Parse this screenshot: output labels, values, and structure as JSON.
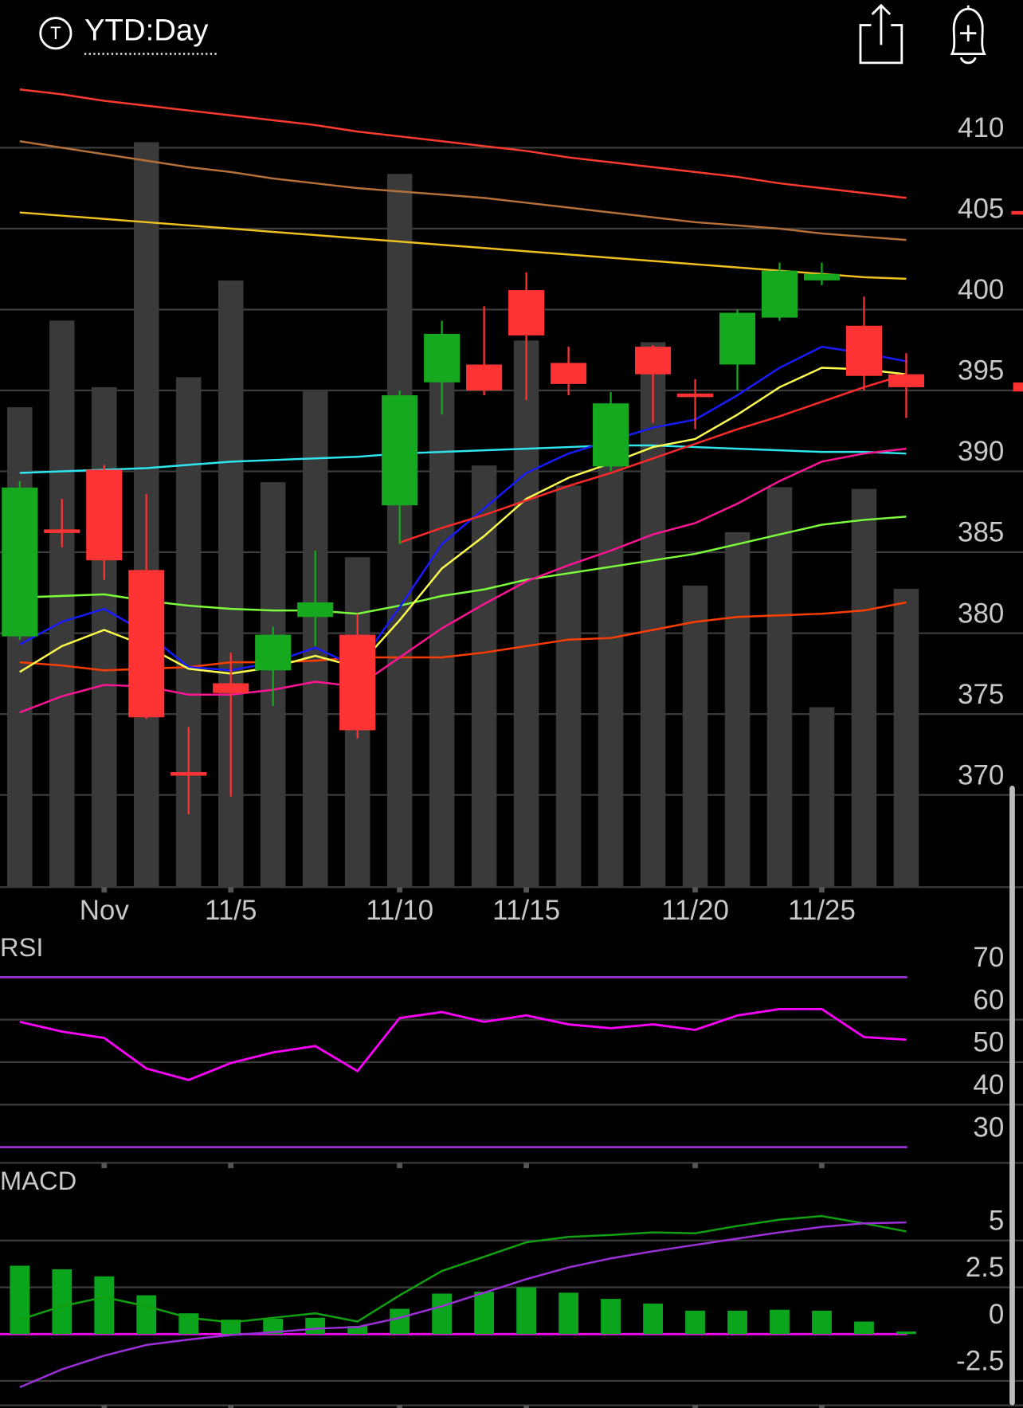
{
  "chart_data": [
    {
      "type": "candlestick",
      "title": "YTD:Day",
      "badge": "T",
      "categories": [
        null,
        null,
        "Nov",
        null,
        null,
        "11/5",
        null,
        null,
        null,
        "11/10",
        null,
        null,
        "11/15",
        null,
        null,
        null,
        "11/20",
        null,
        null,
        "11/25",
        null,
        null
      ],
      "open": [
        379.8,
        386.3,
        390.1,
        383.9,
        371.3,
        376.9,
        377.7,
        381.0,
        379.9,
        387.9,
        395.5,
        396.6,
        401.2,
        396.7,
        390.3,
        397.7,
        394.7,
        396.6,
        399.5,
        401.8,
        399.0,
        396.0
      ],
      "high": [
        389.4,
        388.3,
        390.4,
        388.6,
        374.2,
        378.8,
        380.4,
        385.1,
        381.2,
        395.0,
        399.3,
        400.2,
        402.3,
        397.7,
        394.9,
        397.8,
        395.7,
        400.0,
        402.9,
        402.9,
        400.8,
        397.3
      ],
      "low": [
        379.6,
        385.3,
        383.3,
        374.7,
        368.8,
        369.9,
        375.5,
        379.2,
        373.5,
        385.5,
        393.5,
        394.7,
        394.4,
        394.7,
        390.0,
        393.0,
        392.6,
        395.0,
        399.3,
        401.5,
        395.0,
        393.3
      ],
      "close": [
        389.0,
        386.3,
        384.5,
        374.8,
        371.1,
        376.3,
        379.9,
        381.9,
        374.0,
        394.7,
        398.5,
        395.0,
        398.4,
        395.4,
        394.2,
        396.0,
        394.7,
        399.8,
        402.4,
        402.2,
        395.9,
        395.2
      ],
      "up_color": "#16a81e",
      "down_color": "#ff3333",
      "volume": {
        "color": "#3a3a3a",
        "ylim": [
          0,
          500
        ],
        "values": [
          288,
          340,
          300,
          447,
          306,
          364,
          243,
          298,
          198,
          428,
          330,
          253,
          328,
          241,
          262,
          327,
          181,
          213,
          240,
          108,
          239,
          179
        ]
      },
      "series": [
        {
          "color": "#ff3b30",
          "values": [
            413.6,
            413.3,
            412.9,
            412.6,
            412.3,
            412.0,
            411.7,
            411.4,
            411.0,
            410.7,
            410.4,
            410.1,
            409.8,
            409.4,
            409.1,
            408.8,
            408.5,
            408.2,
            407.8,
            407.5,
            407.2,
            406.9
          ]
        },
        {
          "color": "#b5703a",
          "values": [
            410.4,
            410.0,
            409.6,
            409.2,
            408.8,
            408.5,
            408.1,
            407.8,
            407.5,
            407.3,
            407.1,
            406.9,
            406.6,
            406.3,
            406.0,
            405.7,
            405.4,
            405.2,
            405.0,
            404.7,
            404.5,
            404.3
          ]
        },
        {
          "color": "#f0c020",
          "values": [
            406.0,
            405.8,
            405.6,
            405.4,
            405.2,
            405.0,
            404.8,
            404.6,
            404.4,
            404.2,
            404.0,
            403.8,
            403.6,
            403.4,
            403.2,
            403.0,
            402.8,
            402.6,
            402.4,
            402.2,
            402.0,
            401.9
          ]
        },
        {
          "color": "#2ee6f0",
          "values": [
            389.9,
            390.0,
            390.1,
            390.2,
            390.4,
            390.6,
            390.7,
            390.8,
            390.9,
            391.1,
            391.2,
            391.3,
            391.4,
            391.5,
            391.6,
            391.6,
            391.5,
            391.4,
            391.3,
            391.2,
            391.2,
            391.1
          ]
        },
        {
          "color": "#7cfc3a",
          "values": [
            382.2,
            382.3,
            382.4,
            382.0,
            381.7,
            381.5,
            381.4,
            381.4,
            381.2,
            381.7,
            382.3,
            382.7,
            383.3,
            383.7,
            384.1,
            384.5,
            384.9,
            385.5,
            386.1,
            386.7,
            387.0,
            387.2
          ]
        },
        {
          "color": "#ff3d00",
          "values": [
            378.2,
            378.0,
            377.7,
            377.8,
            377.9,
            378.2,
            378.2,
            378.3,
            378.5,
            378.5,
            378.5,
            378.8,
            379.2,
            379.6,
            379.7,
            380.2,
            380.7,
            381.0,
            381.1,
            381.2,
            381.4,
            381.9
          ]
        },
        {
          "color": "#ff1493",
          "values": [
            375.1,
            376.1,
            376.8,
            376.7,
            376.2,
            376.2,
            376.5,
            377.0,
            376.7,
            378.5,
            380.3,
            381.8,
            383.2,
            384.2,
            385.1,
            386.1,
            386.8,
            388.0,
            389.4,
            390.6,
            391.1,
            391.4
          ]
        },
        {
          "color": "#1a1aff",
          "values": [
            379.3,
            380.7,
            381.5,
            380.0,
            377.9,
            377.7,
            378.2,
            379.1,
            377.9,
            381.6,
            385.5,
            387.7,
            389.9,
            391.1,
            391.9,
            392.7,
            393.2,
            394.7,
            396.4,
            397.7,
            397.3,
            396.8
          ]
        },
        {
          "color": "#ffff4d",
          "values": [
            377.6,
            379.2,
            380.2,
            379.2,
            377.8,
            377.5,
            377.9,
            378.6,
            377.9,
            380.8,
            384.0,
            386.0,
            388.3,
            389.6,
            390.5,
            391.5,
            392.0,
            393.5,
            395.2,
            396.4,
            396.3,
            396.0
          ]
        },
        {
          "color": "#ff2a2a",
          "values": [
            null,
            null,
            null,
            null,
            null,
            null,
            null,
            null,
            null,
            385.6,
            386.5,
            387.3,
            388.2,
            389.1,
            389.9,
            390.8,
            391.7,
            392.6,
            393.4,
            394.3,
            395.2,
            396.0
          ]
        }
      ],
      "ylim": [
        364.3,
        415.8
      ],
      "yticks": [
        410,
        405,
        400,
        395,
        390,
        385,
        380,
        375,
        370
      ],
      "grid": true
    },
    {
      "type": "line",
      "title": "RSI",
      "series": [
        {
          "color": "#ff00ff",
          "values": [
            59.5,
            57.2,
            55.7,
            48.5,
            45.8,
            49.8,
            52.3,
            53.8,
            47.9,
            60.4,
            61.8,
            59.5,
            61.0,
            58.9,
            58.0,
            58.9,
            57.6,
            61.0,
            62.5,
            62.5,
            55.9,
            55.3
          ]
        }
      ],
      "ylim": [
        26.3,
        80.2
      ],
      "yticks": [
        70,
        60,
        50,
        40,
        30
      ],
      "band_color": "#9b30d9",
      "grid": true
    },
    {
      "type": "bar",
      "title": "MACD",
      "color": "#0aa51c",
      "values": [
        3.65,
        3.46,
        3.08,
        2.07,
        1.11,
        0.77,
        0.82,
        0.87,
        0.43,
        1.35,
        2.16,
        2.26,
        2.5,
        2.21,
        1.88,
        1.63,
        1.25,
        1.25,
        1.3,
        1.25,
        0.67,
        0.14
      ],
      "series": [
        {
          "color": "#10a010",
          "values": [
            0.77,
            1.49,
            1.97,
            1.49,
            0.87,
            0.63,
            0.87,
            1.11,
            0.67,
            2.07,
            3.37,
            4.13,
            4.9,
            5.19,
            5.29,
            5.43,
            5.38,
            5.77,
            6.11,
            6.3,
            5.91,
            5.48
          ]
        },
        {
          "color": "#9b30d9",
          "values": [
            -2.84,
            -1.88,
            -1.15,
            -0.58,
            -0.29,
            -0.05,
            0.1,
            0.29,
            0.38,
            0.87,
            1.49,
            2.21,
            2.93,
            3.56,
            4.04,
            4.42,
            4.76,
            5.1,
            5.43,
            5.72,
            5.91,
            5.96
          ]
        }
      ],
      "ylim": [
        -3.8,
        8.9
      ],
      "yticks": [
        5,
        2.5,
        0,
        -2.5
      ],
      "zero_color": "#ff00ff",
      "grid": true
    }
  ]
}
